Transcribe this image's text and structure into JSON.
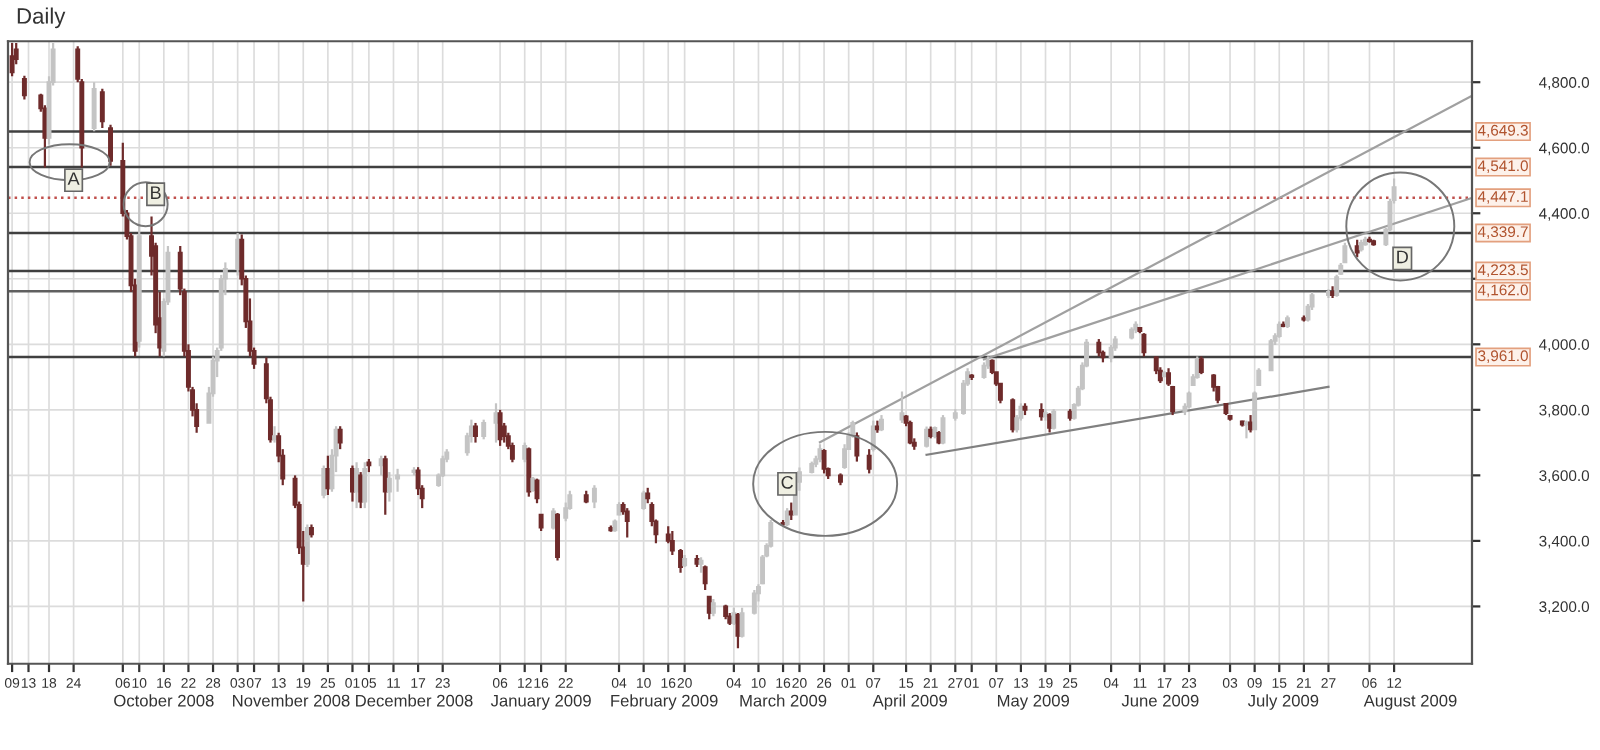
{
  "chart_data": {
    "type": "candlestick",
    "title": "Daily",
    "ylim": [
      3025,
      4925
    ],
    "yticks": [
      {
        "value": 3200,
        "label": "3,200.0"
      },
      {
        "value": 3400,
        "label": "3,400.0"
      },
      {
        "value": 3600,
        "label": "3,600.0"
      },
      {
        "value": 3800,
        "label": "3,800.0"
      },
      {
        "value": 4000,
        "label": "4,000.0"
      },
      {
        "value": 4200,
        "label": null
      },
      {
        "value": 4400,
        "label": "4,400.0"
      },
      {
        "value": 4600,
        "label": "4,600.0"
      },
      {
        "value": 4800,
        "label": "4,800.0"
      }
    ],
    "xlim": [
      "2008-09-08",
      "2009-08-31"
    ],
    "xticks": [
      {
        "value": "2008-09-09",
        "label": "09"
      },
      {
        "value": "2008-09-13",
        "label": "13"
      },
      {
        "value": "2008-09-18",
        "label": "18"
      },
      {
        "value": "2008-09-24",
        "label": "24"
      },
      {
        "value": "2008-10-06",
        "label": "06"
      },
      {
        "value": "2008-10-10",
        "label": "10"
      },
      {
        "value": "2008-10-16",
        "label": "16"
      },
      {
        "value": "2008-10-22",
        "label": "22"
      },
      {
        "value": "2008-10-28",
        "label": "28"
      },
      {
        "value": "2008-11-03",
        "label": "03"
      },
      {
        "value": "2008-11-07",
        "label": "07"
      },
      {
        "value": "2008-11-13",
        "label": "13"
      },
      {
        "value": "2008-11-19",
        "label": "19"
      },
      {
        "value": "2008-11-25",
        "label": "25"
      },
      {
        "value": "2008-12-01",
        "label": "01"
      },
      {
        "value": "2008-12-05",
        "label": "05"
      },
      {
        "value": "2008-12-11",
        "label": "11"
      },
      {
        "value": "2008-12-17",
        "label": "17"
      },
      {
        "value": "2008-12-23",
        "label": "23"
      },
      {
        "value": "2009-01-06",
        "label": "06"
      },
      {
        "value": "2009-01-12",
        "label": "12"
      },
      {
        "value": "2009-01-16",
        "label": "16"
      },
      {
        "value": "2009-01-22",
        "label": "22"
      },
      {
        "value": "2009-02-04",
        "label": "04"
      },
      {
        "value": "2009-02-10",
        "label": "10"
      },
      {
        "value": "2009-02-16",
        "label": "16"
      },
      {
        "value": "2009-02-20",
        "label": "20"
      },
      {
        "value": "2009-03-04",
        "label": "04"
      },
      {
        "value": "2009-03-10",
        "label": "10"
      },
      {
        "value": "2009-03-16",
        "label": "16"
      },
      {
        "value": "2009-03-20",
        "label": "20"
      },
      {
        "value": "2009-03-26",
        "label": "26"
      },
      {
        "value": "2009-04-01",
        "label": "01"
      },
      {
        "value": "2009-04-07",
        "label": "07"
      },
      {
        "value": "2009-04-15",
        "label": "15"
      },
      {
        "value": "2009-04-21",
        "label": "21"
      },
      {
        "value": "2009-04-27",
        "label": "27"
      },
      {
        "value": "2009-05-01",
        "label": "01"
      },
      {
        "value": "2009-05-07",
        "label": "07"
      },
      {
        "value": "2009-05-13",
        "label": "13"
      },
      {
        "value": "2009-05-19",
        "label": "19"
      },
      {
        "value": "2009-05-25",
        "label": "25"
      },
      {
        "value": "2009-06-04",
        "label": "04"
      },
      {
        "value": "2009-06-11",
        "label": "11"
      },
      {
        "value": "2009-06-17",
        "label": "17"
      },
      {
        "value": "2009-06-23",
        "label": "23"
      },
      {
        "value": "2009-07-03",
        "label": "03"
      },
      {
        "value": "2009-07-09",
        "label": "09"
      },
      {
        "value": "2009-07-15",
        "label": "15"
      },
      {
        "value": "2009-07-21",
        "label": "21"
      },
      {
        "value": "2009-07-27",
        "label": "27"
      },
      {
        "value": "2009-08-06",
        "label": "06"
      },
      {
        "value": "2009-08-12",
        "label": "12"
      }
    ],
    "x2ticks": [
      {
        "value": "2008-10-16",
        "label": "October 2008"
      },
      {
        "value": "2008-11-16",
        "label": "November 2008"
      },
      {
        "value": "2008-12-16",
        "label": "December 2008"
      },
      {
        "value": "2009-01-16",
        "label": "January 2009"
      },
      {
        "value": "2009-02-15",
        "label": "February 2009"
      },
      {
        "value": "2009-03-16",
        "label": "March 2009"
      },
      {
        "value": "2009-04-16",
        "label": "April 2009"
      },
      {
        "value": "2009-05-16",
        "label": "May 2009"
      },
      {
        "value": "2009-06-16",
        "label": "June 2009"
      },
      {
        "value": "2009-07-16",
        "label": "July 2009"
      },
      {
        "value": "2009-08-16",
        "label": "August 2009"
      }
    ],
    "x2lim": [
      "2008-09-08",
      "2009-08-31"
    ],
    "grid": true,
    "series": [
      {
        "type": "candlestick",
        "x": [
          "2008-09-09",
          "2008-09-10",
          "2008-09-12",
          "2008-09-16",
          "2008-09-17",
          "2008-09-18",
          "2008-09-19",
          "2008-09-25",
          "2008-09-26",
          "2008-09-29",
          "2008-10-01",
          "2008-10-03",
          "2008-10-06",
          "2008-10-07",
          "2008-10-08",
          "2008-10-09",
          "2008-10-10",
          "2008-10-13",
          "2008-10-14",
          "2008-10-15",
          "2008-10-16",
          "2008-10-17",
          "2008-10-20",
          "2008-10-21",
          "2008-10-22",
          "2008-10-23",
          "2008-10-24",
          "2008-10-27",
          "2008-10-28",
          "2008-10-29",
          "2008-10-30",
          "2008-10-31",
          "2008-11-03",
          "2008-11-04",
          "2008-11-05",
          "2008-11-06",
          "2008-11-07",
          "2008-11-10",
          "2008-11-11",
          "2008-11-12",
          "2008-11-13",
          "2008-11-14",
          "2008-11-17",
          "2008-11-18",
          "2008-11-19",
          "2008-11-20",
          "2008-11-21",
          "2008-11-24",
          "2008-11-25",
          "2008-11-26",
          "2008-11-27",
          "2008-11-28",
          "2008-12-01",
          "2008-12-02",
          "2008-12-03",
          "2008-12-04",
          "2008-12-05",
          "2008-12-08",
          "2008-12-09",
          "2008-12-10",
          "2008-12-12",
          "2008-12-16",
          "2008-12-17",
          "2008-12-18",
          "2008-12-22",
          "2008-12-23",
          "2008-12-24",
          "2008-12-29",
          "2008-12-30",
          "2008-12-31",
          "2009-01-02",
          "2009-01-05",
          "2009-01-06",
          "2009-01-07",
          "2009-01-08",
          "2009-01-09",
          "2009-01-12",
          "2009-01-13",
          "2009-01-14",
          "2009-01-15",
          "2009-01-16",
          "2009-01-19",
          "2009-01-20",
          "2009-01-22",
          "2009-01-23",
          "2009-01-27",
          "2009-01-29",
          "2009-02-02",
          "2009-02-03",
          "2009-02-04",
          "2009-02-05",
          "2009-02-06",
          "2009-02-10",
          "2009-02-11",
          "2009-02-12",
          "2009-02-13",
          "2009-02-16",
          "2009-02-17",
          "2009-02-19",
          "2009-02-20",
          "2009-02-23",
          "2009-02-24",
          "2009-02-25",
          "2009-02-26",
          "2009-02-27",
          "2009-03-02",
          "2009-03-03",
          "2009-03-04",
          "2009-03-05",
          "2009-03-06",
          "2009-03-09",
          "2009-03-10",
          "2009-03-11",
          "2009-03-12",
          "2009-03-13",
          "2009-03-16",
          "2009-03-17",
          "2009-03-18",
          "2009-03-19",
          "2009-03-20",
          "2009-03-23",
          "2009-03-24",
          "2009-03-25",
          "2009-03-26",
          "2009-03-27",
          "2009-03-30",
          "2009-03-31",
          "2009-04-01",
          "2009-04-02",
          "2009-04-03",
          "2009-04-06",
          "2009-04-07",
          "2009-04-08",
          "2009-04-09",
          "2009-04-14",
          "2009-04-15",
          "2009-04-16",
          "2009-04-17",
          "2009-04-20",
          "2009-04-21",
          "2009-04-22",
          "2009-04-23",
          "2009-04-24",
          "2009-04-27",
          "2009-04-29",
          "2009-04-30",
          "2009-05-01",
          "2009-05-04",
          "2009-05-05",
          "2009-05-06",
          "2009-05-07",
          "2009-05-08",
          "2009-05-11",
          "2009-05-12",
          "2009-05-13",
          "2009-05-14",
          "2009-05-18",
          "2009-05-19",
          "2009-05-20",
          "2009-05-21",
          "2009-05-25",
          "2009-05-26",
          "2009-05-27",
          "2009-05-28",
          "2009-05-29",
          "2009-06-01",
          "2009-06-02",
          "2009-06-04",
          "2009-06-05",
          "2009-06-09",
          "2009-06-10",
          "2009-06-11",
          "2009-06-12",
          "2009-06-15",
          "2009-06-16",
          "2009-06-17",
          "2009-06-18",
          "2009-06-19",
          "2009-06-22",
          "2009-06-23",
          "2009-06-24",
          "2009-06-25",
          "2009-06-26",
          "2009-06-29",
          "2009-06-30",
          "2009-07-02",
          "2009-07-03",
          "2009-07-06",
          "2009-07-07",
          "2009-07-08",
          "2009-07-09",
          "2009-07-10",
          "2009-07-13",
          "2009-07-14",
          "2009-07-15",
          "2009-07-16",
          "2009-07-17",
          "2009-07-21",
          "2009-07-22",
          "2009-07-23",
          "2009-07-27",
          "2009-07-28",
          "2009-07-29",
          "2009-07-30",
          "2009-07-31",
          "2009-08-03",
          "2009-08-04",
          "2009-08-05",
          "2009-08-06",
          "2009-08-07",
          "2009-08-10",
          "2009-08-11",
          "2009-08-12"
        ],
        "ohlc": [
          [
            4880,
            4920,
            4818,
            4830
          ],
          [
            4900,
            4920,
            4855,
            4870
          ],
          [
            4810,
            4820,
            4747,
            4760
          ],
          [
            4760,
            4765,
            4710,
            4720
          ],
          [
            4720,
            4730,
            4540,
            4630
          ],
          [
            4630,
            4818,
            4610,
            4800
          ],
          [
            4800,
            4920,
            4790,
            4900
          ],
          [
            4900,
            4910,
            4800,
            4810
          ],
          [
            4800,
            4810,
            4540,
            4600
          ],
          [
            4660,
            4800,
            4650,
            4780
          ],
          [
            4770,
            4780,
            4660,
            4680
          ],
          [
            4660,
            4670,
            4545,
            4560
          ],
          [
            4560,
            4615,
            4390,
            4400
          ],
          [
            4400,
            4410,
            4320,
            4330
          ],
          [
            4330,
            4340,
            4160,
            4180
          ],
          [
            4180,
            4200,
            3963,
            3980
          ],
          [
            4010,
            4444,
            3990,
            4330
          ],
          [
            4330,
            4390,
            4210,
            4270
          ],
          [
            4300,
            4310,
            4034,
            4060
          ],
          [
            4080,
            4160,
            3963,
            3990
          ],
          [
            3980,
            4140,
            3963,
            4130
          ],
          [
            4130,
            4300,
            4120,
            4280
          ],
          [
            4280,
            4300,
            4150,
            4170
          ],
          [
            4160,
            4170,
            3963,
            3980
          ],
          [
            3980,
            4000,
            3856,
            3870
          ],
          [
            3860,
            3870,
            3780,
            3800
          ],
          [
            3800,
            3820,
            3730,
            3750
          ],
          [
            3760,
            3870,
            3760,
            3850
          ],
          [
            3850,
            3963,
            3840,
            3950
          ],
          [
            3950,
            3990,
            3900,
            3980
          ],
          [
            3990,
            4212,
            3980,
            4200
          ],
          [
            4200,
            4250,
            4150,
            4230
          ],
          [
            4230,
            4340,
            4210,
            4320
          ],
          [
            4320,
            4335,
            4180,
            4200
          ],
          [
            4200,
            4210,
            4050,
            4070
          ],
          [
            4070,
            4140,
            3963,
            3980
          ],
          [
            3980,
            3990,
            3925,
            3940
          ],
          [
            3940,
            3960,
            3820,
            3835
          ],
          [
            3830,
            3840,
            3700,
            3710
          ],
          [
            3710,
            3750,
            3700,
            3720
          ],
          [
            3720,
            3730,
            3640,
            3660
          ],
          [
            3660,
            3680,
            3570,
            3590
          ],
          [
            3590,
            3600,
            3500,
            3510
          ],
          [
            3510,
            3520,
            3360,
            3380
          ],
          [
            3380,
            3430,
            3215,
            3330
          ],
          [
            3330,
            3450,
            3320,
            3440
          ],
          [
            3440,
            3450,
            3410,
            3420
          ],
          [
            3540,
            3630,
            3530,
            3620
          ],
          [
            3620,
            3660,
            3540,
            3560
          ],
          [
            3560,
            3680,
            3550,
            3660
          ],
          [
            3660,
            3750,
            3610,
            3740
          ],
          [
            3740,
            3750,
            3680,
            3700
          ],
          [
            3620,
            3630,
            3520,
            3550
          ],
          [
            3550,
            3640,
            3500,
            3620
          ],
          [
            3600,
            3610,
            3500,
            3520
          ],
          [
            3520,
            3640,
            3500,
            3620
          ],
          [
            3640,
            3650,
            3610,
            3630
          ],
          [
            3630,
            3660,
            3600,
            3650
          ],
          [
            3650,
            3660,
            3480,
            3550
          ],
          [
            3550,
            3610,
            3520,
            3590
          ],
          [
            3590,
            3620,
            3550,
            3600
          ],
          [
            3610,
            3625,
            3600,
            3615
          ],
          [
            3615,
            3625,
            3540,
            3560
          ],
          [
            3560,
            3570,
            3500,
            3530
          ],
          [
            3570,
            3606,
            3565,
            3600
          ],
          [
            3600,
            3660,
            3595,
            3650
          ],
          [
            3650,
            3680,
            3640,
            3670
          ],
          [
            3670,
            3730,
            3660,
            3720
          ],
          [
            3720,
            3770,
            3700,
            3750
          ],
          [
            3750,
            3760,
            3700,
            3720
          ],
          [
            3720,
            3770,
            3710,
            3760
          ],
          [
            3760,
            3820,
            3700,
            3790
          ],
          [
            3790,
            3800,
            3690,
            3710
          ],
          [
            3750,
            3760,
            3700,
            3720
          ],
          [
            3720,
            3730,
            3680,
            3690
          ],
          [
            3690,
            3700,
            3640,
            3650
          ],
          [
            3650,
            3700,
            3640,
            3690
          ],
          [
            3680,
            3685,
            3535,
            3550
          ],
          [
            3555,
            3595,
            3550,
            3590
          ],
          [
            3585,
            3590,
            3515,
            3530
          ],
          [
            3480,
            3482,
            3430,
            3440
          ],
          [
            3440,
            3500,
            3435,
            3490
          ],
          [
            3480,
            3485,
            3340,
            3350
          ],
          [
            3470,
            3517,
            3460,
            3500
          ],
          [
            3500,
            3553,
            3495,
            3540
          ],
          [
            3540,
            3553,
            3515,
            3520
          ],
          [
            3520,
            3570,
            3500,
            3560
          ],
          [
            3440,
            3447,
            3428,
            3432
          ],
          [
            3432,
            3465,
            3428,
            3460
          ],
          [
            3480,
            3518,
            3478,
            3510
          ],
          [
            3510,
            3518,
            3480,
            3490
          ],
          [
            3490,
            3500,
            3410,
            3460
          ],
          [
            3500,
            3553,
            3495,
            3545
          ],
          [
            3545,
            3562,
            3515,
            3530
          ],
          [
            3510,
            3518,
            3445,
            3460
          ],
          [
            3460,
            3465,
            3393,
            3420
          ],
          [
            3420,
            3445,
            3393,
            3400
          ],
          [
            3400,
            3430,
            3357,
            3370
          ],
          [
            3370,
            3375,
            3303,
            3320
          ],
          [
            3325,
            3357,
            3320,
            3345
          ],
          [
            3345,
            3357,
            3320,
            3330
          ],
          [
            3330,
            3350,
            3303,
            3340
          ],
          [
            3320,
            3325,
            3250,
            3270
          ],
          [
            3230,
            3232,
            3161,
            3180
          ],
          [
            3180,
            3223,
            3170,
            3210
          ],
          [
            3200,
            3205,
            3161,
            3170
          ],
          [
            3170,
            3180,
            3143,
            3150
          ],
          [
            3150,
            3196,
            3143,
            3180
          ],
          [
            3175,
            3180,
            3072,
            3110
          ],
          [
            3110,
            3196,
            3105,
            3180
          ],
          [
            3180,
            3250,
            3175,
            3240
          ],
          [
            3240,
            3268,
            3215,
            3260
          ],
          [
            3270,
            3357,
            3268,
            3350
          ],
          [
            3355,
            3393,
            3350,
            3385
          ],
          [
            3385,
            3464,
            3380,
            3455
          ],
          [
            3455,
            3464,
            3446,
            3450
          ],
          [
            3450,
            3500,
            3445,
            3490
          ],
          [
            3490,
            3517,
            3464,
            3480
          ],
          [
            3480,
            3589,
            3480,
            3580
          ],
          [
            3580,
            3624,
            3553,
            3610
          ],
          [
            3610,
            3642,
            3606,
            3635
          ],
          [
            3635,
            3660,
            3625,
            3650
          ],
          [
            3650,
            3695,
            3640,
            3680
          ],
          [
            3675,
            3680,
            3606,
            3620
          ],
          [
            3620,
            3624,
            3589,
            3600
          ],
          [
            3600,
            3606,
            3570,
            3580
          ],
          [
            3625,
            3695,
            3620,
            3680
          ],
          [
            3680,
            3731,
            3678,
            3720
          ],
          [
            3720,
            3767,
            3715,
            3760
          ],
          [
            3720,
            3731,
            3642,
            3660
          ],
          [
            3660,
            3680,
            3606,
            3620
          ],
          [
            3680,
            3767,
            3673,
            3750
          ],
          [
            3750,
            3767,
            3730,
            3740
          ],
          [
            3740,
            3784,
            3735,
            3770
          ],
          [
            3770,
            3856,
            3760,
            3790
          ],
          [
            3780,
            3784,
            3750,
            3760
          ],
          [
            3760,
            3767,
            3695,
            3700
          ],
          [
            3700,
            3713,
            3678,
            3690
          ],
          [
            3690,
            3749,
            3685,
            3740
          ],
          [
            3740,
            3749,
            3713,
            3720
          ],
          [
            3720,
            3749,
            3713,
            3745
          ],
          [
            3730,
            3735,
            3695,
            3700
          ],
          [
            3700,
            3784,
            3695,
            3775
          ],
          [
            3775,
            3802,
            3767,
            3790
          ],
          [
            3790,
            3891,
            3785,
            3880
          ],
          [
            3880,
            3927,
            3873,
            3915
          ],
          [
            3905,
            3909,
            3891,
            3900
          ],
          [
            3900,
            3945,
            3895,
            3935
          ],
          [
            3935,
            3963,
            3925,
            3950
          ],
          [
            3950,
            3954,
            3909,
            3915
          ],
          [
            3915,
            3915,
            3873,
            3880
          ],
          [
            3880,
            3880,
            3820,
            3830
          ],
          [
            3830,
            3835,
            3731,
            3740
          ],
          [
            3740,
            3784,
            3731,
            3775
          ],
          [
            3775,
            3820,
            3767,
            3810
          ],
          [
            3810,
            3820,
            3784,
            3800
          ],
          [
            3800,
            3820,
            3767,
            3780
          ],
          [
            3780,
            3802,
            3767,
            3790
          ],
          [
            3785,
            3790,
            3731,
            3745
          ],
          [
            3745,
            3802,
            3740,
            3795
          ],
          [
            3795,
            3802,
            3767,
            3775
          ],
          [
            3775,
            3820,
            3770,
            3815
          ],
          [
            3815,
            3873,
            3810,
            3865
          ],
          [
            3865,
            3945,
            3860,
            3935
          ],
          [
            3935,
            4016,
            3930,
            4005
          ],
          [
            4005,
            4016,
            3963,
            3975
          ],
          [
            3975,
            3981,
            3945,
            3960
          ],
          [
            3960,
            3998,
            3945,
            3990
          ],
          [
            3990,
            4025,
            3980,
            4015
          ],
          [
            4020,
            4052,
            4015,
            4045
          ],
          [
            4045,
            4070,
            4034,
            4060
          ],
          [
            4050,
            4052,
            4034,
            4040
          ],
          [
            4030,
            4034,
            3963,
            3975
          ],
          [
            3960,
            3963,
            3909,
            3920
          ],
          [
            3920,
            3930,
            3882,
            3890
          ],
          [
            3902,
            3918,
            3900,
            3912
          ],
          [
            3912,
            3927,
            3873,
            3880
          ],
          [
            3870,
            3873,
            3784,
            3795
          ],
          [
            3795,
            3820,
            3784,
            3810
          ],
          [
            3810,
            3856,
            3805,
            3850
          ],
          [
            3875,
            3909,
            3873,
            3900
          ],
          [
            3900,
            3963,
            3895,
            3955
          ],
          [
            3955,
            3963,
            3909,
            3915
          ],
          [
            3905,
            3909,
            3856,
            3870
          ],
          [
            3870,
            3873,
            3820,
            3830
          ],
          [
            3818,
            3820,
            3784,
            3790
          ],
          [
            3782,
            3784,
            3767,
            3772
          ],
          [
            3765,
            3767,
            3749,
            3755
          ],
          [
            3755,
            3767,
            3713,
            3762
          ],
          [
            3762,
            3784,
            3731,
            3740
          ],
          [
            3740,
            3856,
            3740,
            3850
          ],
          [
            3875,
            3927,
            3873,
            3920
          ],
          [
            3920,
            4016,
            3920,
            4010
          ],
          [
            4010,
            4034,
            3998,
            4025
          ],
          [
            4025,
            4070,
            4020,
            4060
          ],
          [
            4060,
            4070,
            4052,
            4055
          ],
          [
            4055,
            4088,
            4050,
            4080
          ],
          [
            4080,
            4088,
            4070,
            4075
          ],
          [
            4075,
            4123,
            4070,
            4115
          ],
          [
            4115,
            4159,
            4105,
            4150
          ],
          [
            4150,
            4168,
            4141,
            4160
          ],
          [
            4160,
            4177,
            4141,
            4150
          ],
          [
            4150,
            4212,
            4145,
            4205
          ],
          [
            4215,
            4248,
            4212,
            4240
          ],
          [
            4250,
            4310,
            4248,
            4300
          ],
          [
            4300,
            4319,
            4266,
            4280
          ],
          [
            4290,
            4319,
            4283,
            4310
          ],
          [
            4305,
            4328,
            4301,
            4320
          ],
          [
            4320,
            4328,
            4310,
            4315
          ],
          [
            4315,
            4319,
            4301,
            4305
          ],
          [
            4305,
            4355,
            4300,
            4350
          ],
          [
            4350,
            4444,
            4345,
            4435
          ],
          [
            4440,
            4506,
            4430,
            4480
          ]
        ],
        "colors": [
          "#6e2b2b",
          "#6e2b2b",
          "#6e2b2b",
          "#6e2b2b",
          "#6e2b2b",
          "#c4c4c4",
          "#c4c4c4",
          "#6e2b2b",
          "#6e2b2b",
          "#c4c4c4",
          "#6e2b2b",
          "#6e2b2b",
          "#6e2b2b",
          "#6e2b2b",
          "#6e2b2b",
          "#6e2b2b",
          "#c4c4c4",
          "#6e2b2b",
          "#6e2b2b",
          "#6e2b2b",
          "#c4c4c4",
          "#c4c4c4",
          "#6e2b2b",
          "#6e2b2b",
          "#6e2b2b",
          "#6e2b2b",
          "#6e2b2b",
          "#c4c4c4",
          "#c4c4c4",
          "#c4c4c4",
          "#c4c4c4",
          "#c4c4c4",
          "#c4c4c4",
          "#6e2b2b",
          "#6e2b2b",
          "#6e2b2b",
          "#6e2b2b",
          "#6e2b2b",
          "#6e2b2b",
          "#c4c4c4",
          "#6e2b2b",
          "#6e2b2b",
          "#6e2b2b",
          "#6e2b2b",
          "#6e2b2b",
          "#c4c4c4",
          "#6e2b2b",
          "#c4c4c4",
          "#6e2b2b",
          "#c4c4c4",
          "#c4c4c4",
          "#6e2b2b",
          "#6e2b2b",
          "#c4c4c4",
          "#6e2b2b",
          "#c4c4c4",
          "#6e2b2b",
          "#c4c4c4",
          "#6e2b2b",
          "#c4c4c4",
          "#c4c4c4",
          "#c4c4c4",
          "#6e2b2b",
          "#6e2b2b",
          "#c4c4c4",
          "#c4c4c4",
          "#c4c4c4",
          "#c4c4c4",
          "#c4c4c4",
          "#6e2b2b",
          "#c4c4c4",
          "#c4c4c4",
          "#6e2b2b",
          "#6e2b2b",
          "#6e2b2b",
          "#6e2b2b",
          "#c4c4c4",
          "#6e2b2b",
          "#c4c4c4",
          "#6e2b2b",
          "#6e2b2b",
          "#c4c4c4",
          "#6e2b2b",
          "#c4c4c4",
          "#c4c4c4",
          "#6e2b2b",
          "#c4c4c4",
          "#6e2b2b",
          "#c4c4c4",
          "#c4c4c4",
          "#6e2b2b",
          "#6e2b2b",
          "#c4c4c4",
          "#6e2b2b",
          "#6e2b2b",
          "#6e2b2b",
          "#6e2b2b",
          "#6e2b2b",
          "#6e2b2b",
          "#c4c4c4",
          "#6e2b2b",
          "#c4c4c4",
          "#6e2b2b",
          "#6e2b2b",
          "#c4c4c4",
          "#6e2b2b",
          "#6e2b2b",
          "#c4c4c4",
          "#6e2b2b",
          "#c4c4c4",
          "#c4c4c4",
          "#c4c4c4",
          "#c4c4c4",
          "#c4c4c4",
          "#c4c4c4",
          "#6e2b2b",
          "#c4c4c4",
          "#6e2b2b",
          "#c4c4c4",
          "#c4c4c4",
          "#c4c4c4",
          "#c4c4c4",
          "#c4c4c4",
          "#6e2b2b",
          "#6e2b2b",
          "#6e2b2b",
          "#c4c4c4",
          "#c4c4c4",
          "#c4c4c4",
          "#6e2b2b",
          "#6e2b2b",
          "#c4c4c4",
          "#6e2b2b",
          "#c4c4c4",
          "#c4c4c4",
          "#6e2b2b",
          "#6e2b2b",
          "#6e2b2b",
          "#c4c4c4",
          "#6e2b2b",
          "#c4c4c4",
          "#6e2b2b",
          "#c4c4c4",
          "#c4c4c4",
          "#c4c4c4",
          "#c4c4c4",
          "#6e2b2b",
          "#c4c4c4",
          "#c4c4c4",
          "#6e2b2b",
          "#6e2b2b",
          "#6e2b2b",
          "#6e2b2b",
          "#c4c4c4",
          "#c4c4c4",
          "#6e2b2b",
          "#6e2b2b",
          "#c4c4c4",
          "#6e2b2b",
          "#c4c4c4",
          "#6e2b2b",
          "#c4c4c4",
          "#c4c4c4",
          "#c4c4c4",
          "#c4c4c4",
          "#6e2b2b",
          "#6e2b2b",
          "#c4c4c4",
          "#c4c4c4",
          "#c4c4c4",
          "#c4c4c4",
          "#6e2b2b",
          "#6e2b2b",
          "#6e2b2b",
          "#6e2b2b",
          "#c4c4c4",
          "#6e2b2b",
          "#6e2b2b",
          "#c4c4c4",
          "#c4c4c4",
          "#c4c4c4",
          "#c4c4c4",
          "#6e2b2b",
          "#6e2b2b",
          "#6e2b2b",
          "#6e2b2b",
          "#6e2b2b",
          "#6e2b2b",
          "#c4c4c4",
          "#6e2b2b",
          "#c4c4c4",
          "#c4c4c4",
          "#c4c4c4",
          "#c4c4c4",
          "#c4c4c4",
          "#6e2b2b",
          "#c4c4c4",
          "#6e2b2b",
          "#c4c4c4",
          "#c4c4c4",
          "#c4c4c4",
          "#6e2b2b",
          "#c4c4c4",
          "#c4c4c4",
          "#c4c4c4",
          "#6e2b2b",
          "#c4c4c4",
          "#c4c4c4",
          "#6e2b2b",
          "#6e2b2b",
          "#c4c4c4",
          "#c4c4c4",
          "#c4c4c4"
        ]
      },
      {
        "type": "line",
        "color": "#a0a0a0",
        "x": [
          "2009-03-25",
          "2009-08-31"
        ],
        "values": [
          3701,
          4759
        ]
      },
      {
        "type": "line",
        "color": "#a0a0a0",
        "x": [
          "2009-05-04",
          "2009-08-31"
        ],
        "values": [
          3954,
          4447
        ]
      },
      {
        "type": "line",
        "color": "#808080",
        "x": [
          "2009-04-20",
          "2009-07-27"
        ],
        "values": [
          3663,
          3870
        ]
      }
    ],
    "ref_lines": [
      {
        "axis": "y",
        "value": 4649.3,
        "label": "4,649.3",
        "color": "#404040",
        "line_style": "solid"
      },
      {
        "axis": "y",
        "value": 4541.0,
        "label": "4,541.0",
        "color": "#404040",
        "line_style": "solid"
      },
      {
        "axis": "y",
        "value": 4447.1,
        "label": "4,447.1",
        "color": "#c0504d",
        "line_style": "dotted"
      },
      {
        "axis": "y",
        "value": 4339.7,
        "label": "4,339.7",
        "color": "#404040",
        "line_style": "solid"
      },
      {
        "axis": "y",
        "value": 4223.5,
        "label": "4,223.5",
        "color": "#404040",
        "line_style": "solid"
      },
      {
        "axis": "y",
        "value": 4162.0,
        "label": "4,162.0",
        "color": "#606060",
        "line_style": "solid"
      },
      {
        "axis": "y",
        "value": 3961.0,
        "label": "3,961.0",
        "color": "#404040",
        "line_style": "solid"
      }
    ],
    "annotations": [
      {
        "text": "A",
        "x": "2008-09-24",
        "y": 4501
      },
      {
        "text": "B",
        "x": "2008-10-14",
        "y": 4458
      },
      {
        "text": "C",
        "x": "2009-03-17",
        "y": 3574
      },
      {
        "text": "D",
        "x": "2009-08-14",
        "y": 4262
      }
    ]
  }
}
